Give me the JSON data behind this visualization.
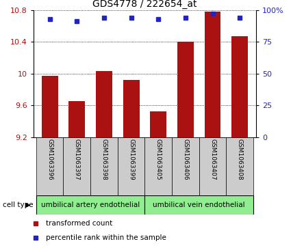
{
  "title": "GDS4778 / 222654_at",
  "samples": [
    "GSM1063396",
    "GSM1063397",
    "GSM1063398",
    "GSM1063399",
    "GSM1063405",
    "GSM1063406",
    "GSM1063407",
    "GSM1063408"
  ],
  "bar_values": [
    9.97,
    9.65,
    10.03,
    9.92,
    9.52,
    10.4,
    10.78,
    10.47
  ],
  "percentile_values": [
    93,
    91,
    94,
    94,
    93,
    94,
    97,
    94
  ],
  "ylim_left": [
    9.2,
    10.8
  ],
  "ylim_right": [
    0,
    100
  ],
  "yticks_left": [
    9.2,
    9.6,
    10.0,
    10.4,
    10.8
  ],
  "ytick_labels_left": [
    "9.2",
    "9.6",
    "10",
    "10.4",
    "10.8"
  ],
  "yticks_right": [
    0,
    25,
    50,
    75,
    100
  ],
  "ytick_labels_right": [
    "0",
    "25",
    "50",
    "75",
    "100%"
  ],
  "bar_color": "#aa1111",
  "dot_color": "#2222cc",
  "cell_type_groups": [
    {
      "label": "umbilical artery endothelial",
      "start": 0,
      "end": 3
    },
    {
      "label": "umbilical vein endothelial",
      "start": 4,
      "end": 7
    }
  ],
  "cell_type_label": "cell type",
  "legend_bar_label": "transformed count",
  "legend_dot_label": "percentile rank within the sample",
  "group_bg_color": "#90ee90",
  "sample_bg_color": "#cccccc",
  "title_fontsize": 10,
  "tick_fontsize": 8
}
